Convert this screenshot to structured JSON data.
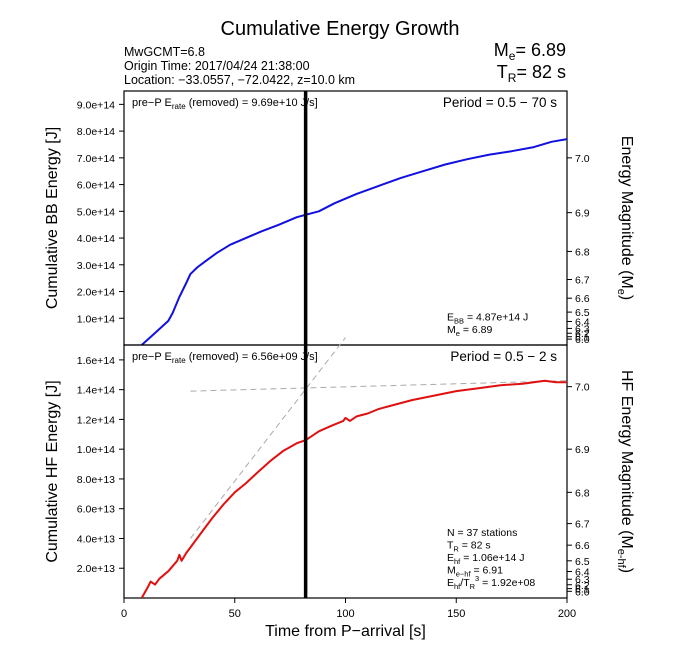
{
  "header": {
    "title": "Cumulative Energy Growth",
    "info_line1": "MwGCMT=6.8",
    "info_line2": "Origin Time: 2017/04/24 21:38:00",
    "info_line3": "Location: −33.0557, −72.0422, z=10.0 km",
    "me_label": "M",
    "me_sub": "e",
    "me_value": "= 6.89",
    "tr_label": "T",
    "tr_sub": "R",
    "tr_value": "= 82 s"
  },
  "colors": {
    "bb_line": "#1010e0",
    "hf_line": "#e01010",
    "guide": "#aaaaaa",
    "frame": "#000000"
  },
  "chart_data": [
    {
      "type": "line",
      "panel": "top",
      "ylabel": "Cumulative BB Energy [J]",
      "ylabel_right": "Energy Magnitude (Me)",
      "ylabel_right_text": "Energy Magnitude (M",
      "ylabel_right_sub": "e",
      "ylabel_right_close": ")",
      "xlim": [
        0,
        200
      ],
      "ylim": [
        0,
        950000000000000.0
      ],
      "yticks": [
        100000000000000.0,
        200000000000000.0,
        300000000000000.0,
        400000000000000.0,
        500000000000000.0,
        600000000000000.0,
        700000000000000.0,
        800000000000000.0,
        900000000000000.0
      ],
      "ytick_labels": [
        "1.0e+14",
        "2.0e+14",
        "3.0e+14",
        "4.0e+14",
        "5.0e+14",
        "6.0e+14",
        "7.0e+14",
        "8.0e+14",
        "9.0e+14"
      ],
      "mag_ticks": [
        {
          "label": "7.0",
          "value": 700000000000000.0
        },
        {
          "label": "6.9",
          "value": 495000000000000.0
        },
        {
          "label": "6.8",
          "value": 350000000000000.0
        },
        {
          "label": "6.7",
          "value": 245000000000000.0
        },
        {
          "label": "6.6",
          "value": 175000000000000.0
        },
        {
          "label": "6.5",
          "value": 123000000000000.0
        },
        {
          "label": "6.4",
          "value": 88000000000000.0
        },
        {
          "label": "6.3",
          "value": 62000000000000.0
        },
        {
          "label": "6.2",
          "value": 44000000000000.0
        },
        {
          "label": "6.1",
          "value": 31000000000000.0
        },
        {
          "label": "6.0",
          "value": 22000000000000.0
        }
      ],
      "series": [
        {
          "x": [
            8,
            12,
            16,
            20,
            22,
            25,
            28,
            30,
            33,
            37,
            42,
            48,
            55,
            62,
            70,
            78,
            82,
            88,
            95,
            105,
            115,
            125,
            135,
            145,
            155,
            165,
            175,
            185,
            193,
            200
          ],
          "y": [
            0.0,
            30000000000000.0,
            60000000000000.0,
            90000000000000.0,
            120000000000000.0,
            180000000000000.0,
            230000000000000.0,
            265000000000000.0,
            290000000000000.0,
            315000000000000.0,
            345000000000000.0,
            375000000000000.0,
            400000000000000.0,
            425000000000000.0,
            450000000000000.0,
            478000000000000.0,
            487000000000000.0,
            500000000000000.0,
            530000000000000.0,
            565000000000000.0,
            595000000000000.0,
            625000000000000.0,
            650000000000000.0,
            675000000000000.0,
            695000000000000.0,
            712000000000000.0,
            725000000000000.0,
            740000000000000.0,
            760000000000000.0,
            770000000000000.0
          ]
        }
      ],
      "vline_x": 82,
      "annotation_left": {
        "prefix": "pre−P E",
        "sub": "rate",
        "suffix": " (removed) = 9.69e+10 J/s]"
      },
      "annotation_right": "Period = 0.5 − 70 s",
      "stats": [
        {
          "label": "E",
          "sub": "BB",
          "value": " = 4.87e+14 J"
        },
        {
          "label": "M",
          "sub": "e",
          "value": " = 6.89"
        }
      ]
    },
    {
      "type": "line",
      "panel": "bottom",
      "ylabel": "Cumulative HF Energy [J]",
      "ylabel_right": "HF Energy Magnitude (Me-hf)",
      "ylabel_right_text": "HF Energy Magnitude (M",
      "ylabel_right_sub": "e-hf",
      "ylabel_right_close": ")",
      "xlabel": "Time from P−arrival [s]",
      "xlim": [
        0,
        200
      ],
      "ylim": [
        0,
        170000000000000.0
      ],
      "xticks": [
        0,
        50,
        100,
        150,
        200
      ],
      "yticks": [
        20000000000000.0,
        40000000000000.0,
        60000000000000.0,
        80000000000000.0,
        100000000000000.0,
        120000000000000.0,
        140000000000000.0,
        160000000000000.0
      ],
      "ytick_labels": [
        "2.0e+13",
        "4.0e+13",
        "6.0e+13",
        "8.0e+13",
        "1.0e+14",
        "1.2e+14",
        "1.4e+14",
        "1.6e+14"
      ],
      "mag_ticks": [
        {
          "label": "7.0",
          "value": 142000000000000.0
        },
        {
          "label": "6.9",
          "value": 100000000000000.0
        },
        {
          "label": "6.8",
          "value": 71000000000000.0
        },
        {
          "label": "6.7",
          "value": 50000000000000.0
        },
        {
          "label": "6.6",
          "value": 35500000000000.0
        },
        {
          "label": "6.5",
          "value": 25000000000000.0
        },
        {
          "label": "6.4",
          "value": 17800000000000.0
        },
        {
          "label": "6.3",
          "value": 12600000000000.0
        },
        {
          "label": "6.2",
          "value": 8900000000000.0
        },
        {
          "label": "6.1",
          "value": 6300000000000.0
        },
        {
          "label": "6.0",
          "value": 4500000000000.0
        }
      ],
      "series": [
        {
          "x": [
            8,
            11,
            12,
            14,
            16,
            20,
            24,
            25,
            26,
            28,
            32,
            36,
            40,
            45,
            50,
            55,
            60,
            66,
            72,
            78,
            82,
            88,
            94,
            99,
            100,
            102,
            105,
            110,
            115,
            120,
            130,
            140,
            150,
            160,
            170,
            180,
            190,
            195,
            200
          ],
          "y": [
            0,
            8000000000000.0,
            11000000000000.0,
            9000000000000.0,
            13000000000000.0,
            18000000000000.0,
            25000000000000.0,
            29000000000000.0,
            25000000000000.0,
            30000000000000.0,
            38000000000000.0,
            46000000000000.0,
            54000000000000.0,
            63000000000000.0,
            71000000000000.0,
            77000000000000.0,
            84000000000000.0,
            92000000000000.0,
            99000000000000.0,
            104000000000000.0,
            106000000000000.0,
            112000000000000.0,
            116000000000000.0,
            119000000000000.0,
            121000000000000.0,
            119000000000000.0,
            122000000000000.0,
            124000000000000.0,
            127000000000000.0,
            129000000000000.0,
            133000000000000.0,
            136000000000000.0,
            139000000000000.0,
            141000000000000.0,
            143000000000000.0,
            144000000000000.0,
            146000000000000.0,
            145000000000000.0,
            145000000000000.0
          ]
        }
      ],
      "guide_lines": [
        {
          "x": [
            30,
            200
          ],
          "y": [
            139000000000000.0,
            146000000000000.0
          ]
        },
        {
          "x": [
            30,
            100
          ],
          "y": [
            40000000000000.0,
            175000000000000.0
          ]
        }
      ],
      "vline_x": 82,
      "annotation_left": {
        "prefix": "pre−P E",
        "sub": "rate",
        "suffix": " (removed) = 6.56e+09 J/s]"
      },
      "annotation_right": "Period = 0.5 − 2 s",
      "stats": [
        {
          "label": "N = 37 stations",
          "sub": "",
          "value": ""
        },
        {
          "label": "T",
          "sub": "R",
          "value": " = 82  s"
        },
        {
          "label": "E",
          "sub": "hf",
          "value": " = 1.06e+14 J"
        },
        {
          "label": "M",
          "sub": "e−hf",
          "value": " = 6.91"
        },
        {
          "label": "E",
          "sub": "hf",
          "value": "/T",
          "sub2": "R",
          "sup": "3",
          "tail": " =  1.92e+08"
        }
      ]
    }
  ]
}
